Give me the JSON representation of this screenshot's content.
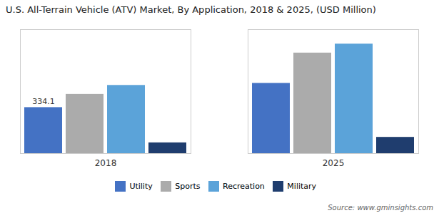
{
  "chart_data": {
    "type": "bar",
    "title": "U.S. All-Terrain Vehicle (ATV) Market, By Application, 2018 & 2025, (USD Million)",
    "categories": [
      "2018",
      "2025"
    ],
    "series": [
      {
        "name": "Utility",
        "color": "#4472C4",
        "values": [
          334.1,
          510.0
        ]
      },
      {
        "name": "Sports",
        "color": "#ABABAB",
        "values": [
          430.0,
          730.0
        ]
      },
      {
        "name": "Recreation",
        "color": "#5BA3D9",
        "values": [
          495.0,
          795.0
        ]
      },
      {
        "name": "Military",
        "color": "#1F3D6E",
        "values": [
          78.0,
          118.0
        ]
      }
    ],
    "ylim": [
      0,
      900
    ],
    "grid": false,
    "legend": "bottom",
    "tick_labels": "x",
    "annotations": [
      {
        "text": "334.1",
        "category": "2018",
        "series": "Utility",
        "value": 334.1
      }
    ],
    "caption": "Source: www.gminsights.com"
  }
}
